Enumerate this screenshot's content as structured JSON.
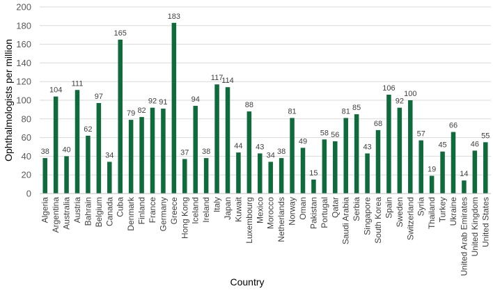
{
  "chart_data": {
    "type": "bar",
    "title": "",
    "xlabel": "Country",
    "ylabel": "Ophthalmologists per million",
    "ylim": [
      0,
      200
    ],
    "yticks": [
      0,
      20,
      40,
      60,
      80,
      100,
      120,
      140,
      160,
      180,
      200
    ],
    "grid": true,
    "bar_color": "#0f6b3c",
    "categories": [
      "Algeria",
      "Argentina",
      "Australia",
      "Austria",
      "Bahrain",
      "Belgium",
      "Canada",
      "Cuba",
      "Denmark",
      "Finland",
      "France",
      "Germany",
      "Greece",
      "Hong Kong",
      "Iceland",
      "Ireland",
      "Italy",
      "Japan",
      "Kuwait",
      "Luxembourg",
      "Mexico",
      "Morocco",
      "Netherlands",
      "Norway",
      "Oman",
      "Pakistan",
      "Portugal",
      "Qatar",
      "Saudi Arabia",
      "Serbia",
      "Singapore",
      "South Korea",
      "Spain",
      "Sweden",
      "Switzerland",
      "Syria",
      "Thailand",
      "Turkey",
      "Ukraine",
      "United Arab Emirates",
      "United Kingdom",
      "United States"
    ],
    "values": [
      38,
      104,
      40,
      111,
      62,
      97,
      34,
      165,
      79,
      82,
      92,
      91,
      183,
      37,
      94,
      38,
      117,
      114,
      44,
      88,
      43,
      34,
      38,
      81,
      49,
      15,
      58,
      56,
      81,
      85,
      43,
      68,
      106,
      92,
      100,
      57,
      19,
      45,
      66,
      14,
      46,
      55
    ]
  }
}
